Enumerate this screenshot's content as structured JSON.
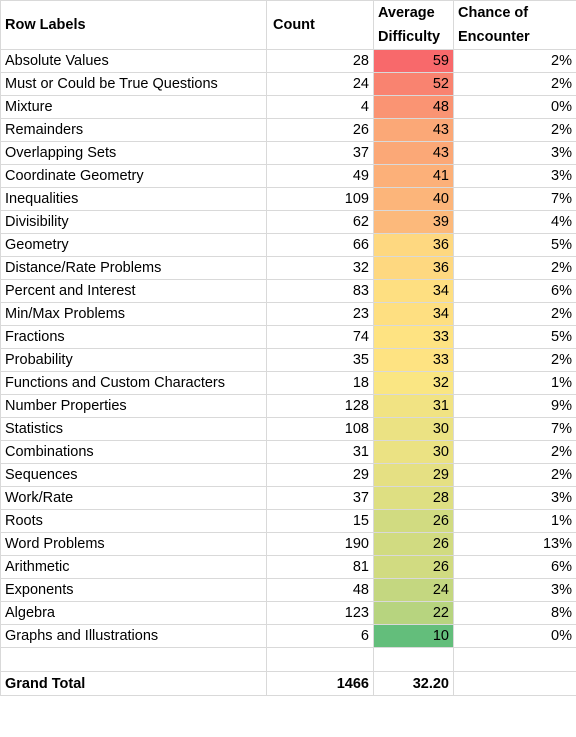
{
  "headers": {
    "row_labels": "Row Labels",
    "count": "Count",
    "avg_difficulty_line1": "Average",
    "avg_difficulty_line2": "Difficulty",
    "chance_line1": "Chance of",
    "chance_line2": "Encounter"
  },
  "rows": [
    {
      "label": "Absolute Values",
      "count": "28",
      "difficulty": "59",
      "chance": "2%",
      "color": "#f8696b"
    },
    {
      "label": "Must or Could be True Questions",
      "count": "24",
      "difficulty": "52",
      "chance": "2%",
      "color": "#f98370"
    },
    {
      "label": "Mixture",
      "count": "4",
      "difficulty": "48",
      "chance": "0%",
      "color": "#fa9473"
    },
    {
      "label": "Remainders",
      "count": "26",
      "difficulty": "43",
      "chance": "2%",
      "color": "#fba877"
    },
    {
      "label": "Overlapping Sets",
      "count": "37",
      "difficulty": "43",
      "chance": "3%",
      "color": "#fba877"
    },
    {
      "label": "Coordinate Geometry",
      "count": "49",
      "difficulty": "41",
      "chance": "3%",
      "color": "#fcb079"
    },
    {
      "label": "Inequalities",
      "count": "109",
      "difficulty": "40",
      "chance": "7%",
      "color": "#fcb57a"
    },
    {
      "label": "Divisibility",
      "count": "62",
      "difficulty": "39",
      "chance": "4%",
      "color": "#fcb97b"
    },
    {
      "label": "Geometry",
      "count": "66",
      "difficulty": "36",
      "chance": "5%",
      "color": "#fed880"
    },
    {
      "label": "Distance/Rate Problems",
      "count": "32",
      "difficulty": "36",
      "chance": "2%",
      "color": "#fed880"
    },
    {
      "label": "Percent and Interest",
      "count": "83",
      "difficulty": "34",
      "chance": "6%",
      "color": "#fedf81"
    },
    {
      "label": "Min/Max Problems",
      "count": "23",
      "difficulty": "34",
      "chance": "2%",
      "color": "#fedf81"
    },
    {
      "label": "Fractions",
      "count": "74",
      "difficulty": "33",
      "chance": "5%",
      "color": "#fee382"
    },
    {
      "label": "Probability",
      "count": "35",
      "difficulty": "33",
      "chance": "2%",
      "color": "#fee382"
    },
    {
      "label": "Functions and Custom Characters",
      "count": "18",
      "difficulty": "32",
      "chance": "1%",
      "color": "#fae683"
    },
    {
      "label": "Number Properties",
      "count": "128",
      "difficulty": "31",
      "chance": "9%",
      "color": "#f1e383"
    },
    {
      "label": "Statistics",
      "count": "108",
      "difficulty": "30",
      "chance": "7%",
      "color": "#ebe283"
    },
    {
      "label": "Combinations",
      "count": "31",
      "difficulty": "30",
      "chance": "2%",
      "color": "#ebe283"
    },
    {
      "label": "Sequences",
      "count": "29",
      "difficulty": "29",
      "chance": "2%",
      "color": "#e5e083"
    },
    {
      "label": "Work/Rate",
      "count": "37",
      "difficulty": "28",
      "chance": "3%",
      "color": "#dedf82"
    },
    {
      "label": "Roots",
      "count": "15",
      "difficulty": "26",
      "chance": "1%",
      "color": "#d1db81"
    },
    {
      "label": "Word Problems",
      "count": "190",
      "difficulty": "26",
      "chance": "13%",
      "color": "#d1db81"
    },
    {
      "label": "Arithmetic",
      "count": "81",
      "difficulty": "26",
      "chance": "6%",
      "color": "#d1db81"
    },
    {
      "label": "Exponents",
      "count": "48",
      "difficulty": "24",
      "chance": "3%",
      "color": "#c4d780"
    },
    {
      "label": "Algebra",
      "count": "123",
      "difficulty": "22",
      "chance": "8%",
      "color": "#b7d47f"
    },
    {
      "label": "Graphs and Illustrations",
      "count": "6",
      "difficulty": "10",
      "chance": "0%",
      "color": "#63be7b"
    }
  ],
  "total": {
    "label": "Grand Total",
    "count": "1466",
    "difficulty": "32.20"
  }
}
